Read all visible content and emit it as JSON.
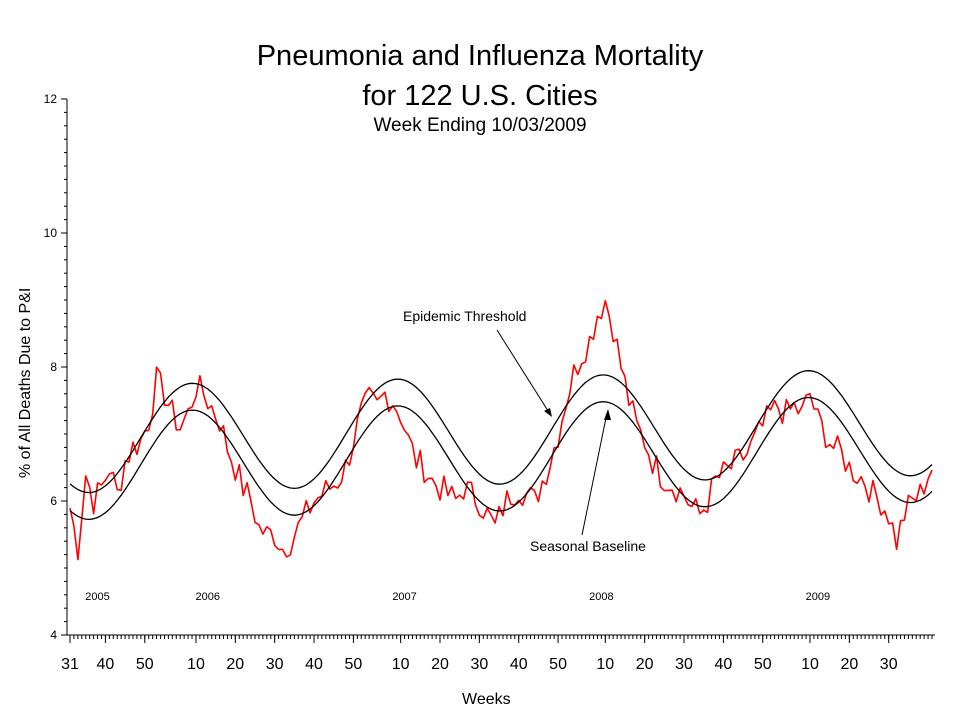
{
  "chart_data": {
    "type": "line",
    "title": "Pneumonia and Influenza Mortality",
    "title_line2": "for 122 U.S. Cities",
    "subtitle": "Week Ending 10/03/2009",
    "ylabel": "% of All Deaths Due to P&I",
    "xlabel": "Weeks",
    "ylim": [
      4,
      12
    ],
    "yticks": [
      "4",
      "6",
      "8",
      "10",
      "12"
    ],
    "grid": false,
    "x_ticks": [
      "31",
      "40",
      "50",
      "10",
      "20",
      "30",
      "40",
      "50",
      "10",
      "20",
      "30",
      "40",
      "50",
      "10",
      "20",
      "30",
      "40",
      "50",
      "10",
      "20",
      "30"
    ],
    "x_tick_index": [
      0,
      9,
      19,
      32,
      42,
      52,
      62,
      72,
      84,
      94,
      104,
      114,
      124,
      136,
      146,
      156,
      166,
      176,
      188,
      198,
      208
    ],
    "years": [
      {
        "label": "2005",
        "index": 7
      },
      {
        "label": "2006",
        "index": 35
      },
      {
        "label": "2007",
        "index": 85
      },
      {
        "label": "2008",
        "index": 135
      },
      {
        "label": "2009",
        "index": 190
      }
    ],
    "n_weeks": 220,
    "series": [
      {
        "key": "observed",
        "color": "#ff0000",
        "anchors": [
          [
            0,
            5.9
          ],
          [
            2,
            5.3
          ],
          [
            4,
            6.4
          ],
          [
            6,
            6.0
          ],
          [
            8,
            6.2
          ],
          [
            10,
            6.5
          ],
          [
            12,
            6.1
          ],
          [
            14,
            6.6
          ],
          [
            16,
            6.8
          ],
          [
            18,
            6.9
          ],
          [
            20,
            7.2
          ],
          [
            22,
            7.8
          ],
          [
            24,
            7.6
          ],
          [
            26,
            7.3
          ],
          [
            28,
            7.1
          ],
          [
            30,
            7.3
          ],
          [
            32,
            7.7
          ],
          [
            34,
            7.6
          ],
          [
            36,
            7.4
          ],
          [
            38,
            7.2
          ],
          [
            40,
            6.8
          ],
          [
            42,
            6.5
          ],
          [
            44,
            6.2
          ],
          [
            46,
            6.0
          ],
          [
            48,
            5.6
          ],
          [
            50,
            5.5
          ],
          [
            52,
            5.5
          ],
          [
            54,
            5.3
          ],
          [
            56,
            5.4
          ],
          [
            58,
            5.6
          ],
          [
            60,
            5.8
          ],
          [
            62,
            6.0
          ],
          [
            64,
            6.1
          ],
          [
            66,
            6.2
          ],
          [
            68,
            6.3
          ],
          [
            70,
            6.5
          ],
          [
            72,
            6.9
          ],
          [
            74,
            7.3
          ],
          [
            76,
            7.5
          ],
          [
            78,
            7.4
          ],
          [
            80,
            7.6
          ],
          [
            82,
            7.5
          ],
          [
            84,
            7.3
          ],
          [
            86,
            6.9
          ],
          [
            88,
            6.6
          ],
          [
            90,
            6.5
          ],
          [
            92,
            6.3
          ],
          [
            94,
            6.2
          ],
          [
            96,
            6.1
          ],
          [
            98,
            6.0
          ],
          [
            100,
            6.2
          ],
          [
            102,
            6.1
          ],
          [
            104,
            6.0
          ],
          [
            106,
            5.8
          ],
          [
            108,
            5.6
          ],
          [
            110,
            5.9
          ],
          [
            112,
            6.1
          ],
          [
            114,
            6.2
          ],
          [
            116,
            6.1
          ],
          [
            118,
            6.0
          ],
          [
            120,
            6.3
          ],
          [
            122,
            6.6
          ],
          [
            124,
            7.0
          ],
          [
            126,
            7.5
          ],
          [
            128,
            7.9
          ],
          [
            130,
            8.2
          ],
          [
            132,
            8.4
          ],
          [
            134,
            8.8
          ],
          [
            136,
            9.0
          ],
          [
            138,
            8.6
          ],
          [
            140,
            8.0
          ],
          [
            142,
            7.5
          ],
          [
            144,
            7.1
          ],
          [
            146,
            6.9
          ],
          [
            148,
            6.6
          ],
          [
            150,
            6.4
          ],
          [
            152,
            6.3
          ],
          [
            154,
            6.2
          ],
          [
            156,
            6.1
          ],
          [
            158,
            5.9
          ],
          [
            160,
            5.8
          ],
          [
            162,
            6.0
          ],
          [
            164,
            6.3
          ],
          [
            166,
            6.4
          ],
          [
            168,
            6.5
          ],
          [
            170,
            6.6
          ],
          [
            172,
            6.7
          ],
          [
            174,
            6.9
          ],
          [
            176,
            7.1
          ],
          [
            178,
            7.3
          ],
          [
            180,
            7.4
          ],
          [
            182,
            7.3
          ],
          [
            184,
            7.4
          ],
          [
            186,
            7.3
          ],
          [
            188,
            7.6
          ],
          [
            190,
            7.2
          ],
          [
            192,
            7.0
          ],
          [
            194,
            6.8
          ],
          [
            196,
            6.7
          ],
          [
            198,
            6.5
          ],
          [
            200,
            6.4
          ],
          [
            202,
            6.3
          ],
          [
            204,
            6.1
          ],
          [
            206,
            6.0
          ],
          [
            208,
            5.8
          ],
          [
            210,
            5.4
          ],
          [
            212,
            5.8
          ],
          [
            214,
            6.0
          ],
          [
            216,
            6.1
          ],
          [
            218,
            6.4
          ],
          [
            219,
            6.5
          ]
        ]
      },
      {
        "key": "threshold",
        "color": "#000000",
        "mean": 6.92,
        "amplitude": 0.8,
        "peak_index": 31,
        "trend_per_week": 0.0012,
        "period": 52.18
      },
      {
        "key": "baseline",
        "color": "#000000",
        "mean": 6.52,
        "amplitude": 0.8,
        "peak_index": 31,
        "trend_per_week": 0.0012,
        "period": 52.18
      }
    ],
    "annotations": [
      {
        "text": "Epidemic Threshold"
      },
      {
        "text": "Seasonal Baseline"
      }
    ]
  }
}
